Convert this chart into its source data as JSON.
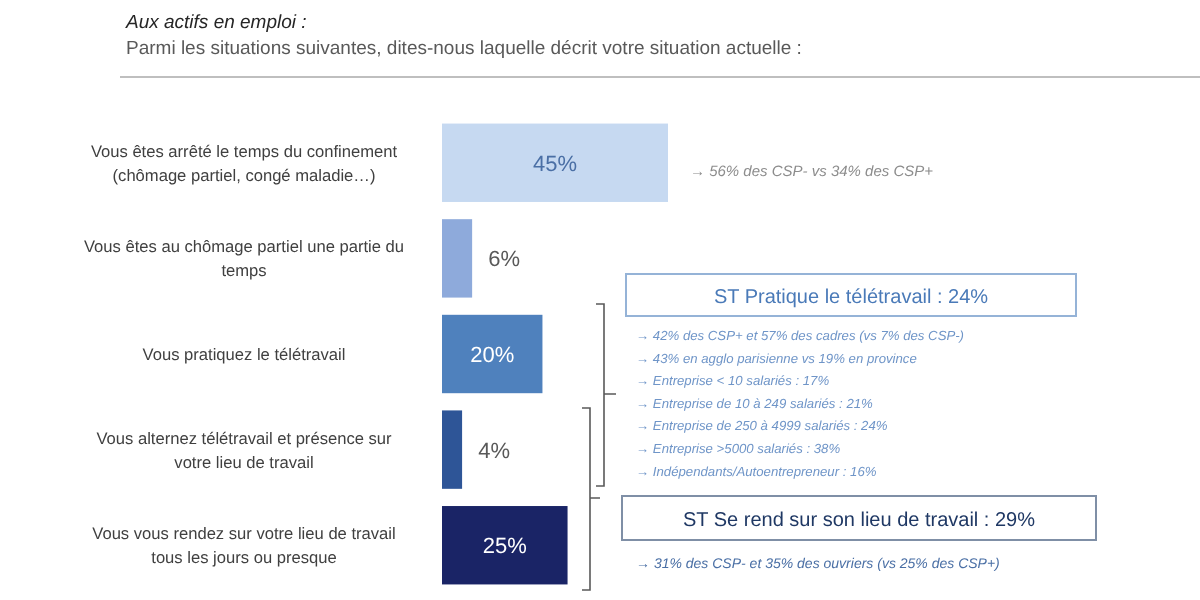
{
  "chart_data": {
    "type": "bar",
    "orientation": "horizontal",
    "value_labels": [
      "45%",
      "6%",
      "20%",
      "4%",
      "25%"
    ],
    "title": "Aux actifs en emploi :",
    "subtitle": "Parmi les situations suivantes, dites-nous laquelle décrit votre situation actuelle :",
    "categories": [
      "Vous êtes arrêté le temps du confinement (chômage partiel, congé maladie…)",
      "Vous êtes au chômage partiel une partie du temps",
      "Vous pratiquez le télétravail",
      "Vous alternez télétravail et présence sur votre lieu de travail",
      "Vous vous rendez sur votre lieu de travail tous les jours ou presque"
    ],
    "values": [
      45,
      6,
      20,
      4,
      25
    ],
    "colors": [
      "#c6d9f1",
      "#8eaadb",
      "#4f81bd",
      "#2e5597",
      "#1a2466"
    ],
    "annotations": [
      "→ 56% des CSP- vs 34% des CSP+",
      "ST Pratique le télétravail :  24%",
      "→ 42% des CSP+ et 57% des cadres (vs 7% des CSP-)",
      "→ 43% en agglo parisienne vs 19% en province",
      "→ Entreprise < 10 salariés : 17%",
      "→ Entreprise de 10 à 249 salariés : 21%",
      "→ Entreprise de 250 à 4999 salariés : 24%",
      "→ Entreprise >5000 salariés : 38%",
      "→ Indépendants/Autoentrepreneur : 16%",
      "ST Se rend sur son lieu de travail : 29%",
      "→ 31% des CSP- et 35% des ouvriers (vs 25% des CSP+)"
    ]
  }
}
